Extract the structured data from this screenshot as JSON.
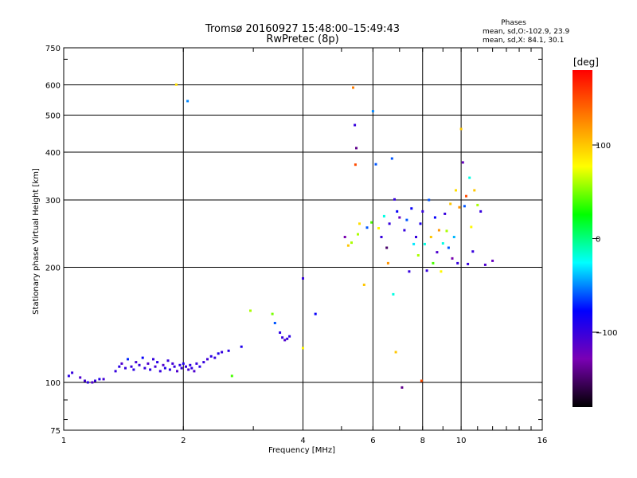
{
  "chart_data": {
    "type": "scatter",
    "title": "Tromsø 20160927 15:48:00–15:49:43",
    "subtitle": "RwPretec (8p)",
    "xlabel": "Frequency [MHz]",
    "ylabel": "Stationary phase Virtual Height [km]",
    "x_scale": "log",
    "y_scale": "log",
    "xlim": [
      1,
      16
    ],
    "ylim": [
      75,
      750
    ],
    "x_ticks": [
      1,
      2,
      4,
      6,
      8,
      10,
      16
    ],
    "x_tick_labels": [
      "1",
      "2",
      "4",
      "6",
      "8",
      "10",
      "16"
    ],
    "y_ticks": [
      75,
      100,
      200,
      300,
      400,
      500,
      600,
      750
    ],
    "y_tick_labels": [
      "75",
      "100",
      "200",
      "300",
      "400",
      "500",
      "600",
      "750"
    ],
    "grid": true,
    "legend": {
      "title": "Phases",
      "lines": [
        "mean, sd,O:-102.9, 23.9",
        "mean, sd,X:  84.1, 30.1"
      ]
    },
    "colorbar": {
      "label": "[deg]",
      "range": [
        -180,
        180
      ],
      "ticks": [
        100,
        0,
        -100
      ],
      "tick_labels": [
        "100",
        "0",
        "−100"
      ],
      "colormap": [
        "#000000",
        "#7a00b4",
        "#0000ff",
        "#00ffff",
        "#00ff00",
        "#ffff00",
        "#ff8000",
        "#ff0000"
      ]
    },
    "series": [
      {
        "name": "E region trace",
        "points": [
          [
            1.03,
            104,
            -95
          ],
          [
            1.05,
            106,
            -100
          ],
          [
            1.1,
            103,
            -110
          ],
          [
            1.13,
            101,
            -105
          ],
          [
            1.15,
            100,
            -95
          ],
          [
            1.18,
            100,
            -110
          ],
          [
            1.2,
            101,
            -100
          ],
          [
            1.23,
            102,
            -90
          ],
          [
            1.26,
            102,
            -105
          ],
          [
            1.35,
            107,
            -100
          ],
          [
            1.38,
            110,
            -95
          ],
          [
            1.4,
            112,
            -110
          ],
          [
            1.43,
            109,
            -100
          ],
          [
            1.45,
            115,
            -70
          ],
          [
            1.48,
            110,
            -100
          ],
          [
            1.5,
            108,
            -95
          ],
          [
            1.52,
            113,
            -105
          ],
          [
            1.55,
            111,
            -100
          ],
          [
            1.58,
            116,
            -80
          ],
          [
            1.6,
            109,
            -100
          ],
          [
            1.63,
            112,
            -110
          ],
          [
            1.65,
            108,
            -95
          ],
          [
            1.68,
            115,
            -100
          ],
          [
            1.7,
            110,
            -105
          ],
          [
            1.72,
            113,
            -95
          ],
          [
            1.75,
            107,
            -100
          ],
          [
            1.78,
            111,
            -110
          ],
          [
            1.8,
            109,
            -90
          ],
          [
            1.83,
            114,
            -100
          ],
          [
            1.85,
            108,
            -95
          ],
          [
            1.88,
            112,
            -105
          ],
          [
            1.9,
            110,
            -100
          ],
          [
            1.93,
            107,
            -110
          ],
          [
            1.96,
            111,
            -95
          ],
          [
            1.98,
            109,
            -100
          ],
          [
            2.0,
            112,
            -90
          ],
          [
            2.03,
            110,
            -100
          ],
          [
            2.06,
            108,
            -105
          ],
          [
            2.08,
            111,
            -95
          ],
          [
            2.1,
            109,
            -100
          ],
          [
            2.13,
            107,
            -110
          ],
          [
            2.16,
            112,
            -100
          ],
          [
            2.2,
            110,
            -95
          ],
          [
            2.25,
            113,
            -100
          ],
          [
            2.3,
            115,
            -105
          ],
          [
            2.35,
            117,
            -95
          ],
          [
            2.4,
            116,
            -100
          ],
          [
            2.45,
            119,
            -90
          ],
          [
            2.5,
            120,
            -100
          ],
          [
            2.6,
            121,
            -95
          ],
          [
            2.65,
            104,
            40
          ],
          [
            2.8,
            124,
            -90
          ],
          [
            2.95,
            154,
            60
          ],
          [
            3.35,
            151,
            50
          ],
          [
            3.4,
            143,
            -60
          ],
          [
            3.5,
            135,
            -95
          ],
          [
            3.55,
            131,
            -100
          ],
          [
            3.6,
            129,
            -110
          ],
          [
            3.65,
            130,
            -100
          ],
          [
            3.7,
            132,
            -95
          ],
          [
            4.0,
            123,
            80
          ],
          [
            4.3,
            151,
            -80
          ]
        ]
      },
      {
        "name": "F region trace",
        "points": [
          [
            1.92,
            601,
            90
          ],
          [
            2.05,
            544,
            -50
          ],
          [
            4.0,
            187,
            -100
          ],
          [
            5.1,
            240,
            -130
          ],
          [
            5.2,
            228,
            100
          ],
          [
            5.3,
            232,
            60
          ],
          [
            5.35,
            590,
            130
          ],
          [
            5.4,
            471,
            -100
          ],
          [
            5.42,
            371,
            150
          ],
          [
            5.45,
            410,
            -140
          ],
          [
            5.5,
            244,
            60
          ],
          [
            5.55,
            260,
            90
          ],
          [
            5.7,
            180,
            100
          ],
          [
            5.8,
            254,
            -60
          ],
          [
            5.95,
            262,
            40
          ],
          [
            6.0,
            512,
            -50
          ],
          [
            6.1,
            372,
            -60
          ],
          [
            6.2,
            253,
            80
          ],
          [
            6.3,
            240,
            -100
          ],
          [
            6.4,
            272,
            -20
          ],
          [
            6.5,
            225,
            -150
          ],
          [
            6.55,
            205,
            120
          ],
          [
            6.6,
            260,
            -100
          ],
          [
            6.7,
            385,
            -60
          ],
          [
            6.75,
            170,
            -20
          ],
          [
            6.8,
            301,
            -100
          ],
          [
            6.85,
            120,
            100
          ],
          [
            6.9,
            280,
            -80
          ],
          [
            7.0,
            270,
            -120
          ],
          [
            7.1,
            97,
            -140
          ],
          [
            7.2,
            250,
            -100
          ],
          [
            7.3,
            266,
            -60
          ],
          [
            7.4,
            195,
            -100
          ],
          [
            7.5,
            285,
            -80
          ],
          [
            7.6,
            230,
            -30
          ],
          [
            7.7,
            240,
            -100
          ],
          [
            7.8,
            215,
            60
          ],
          [
            7.9,
            260,
            -90
          ],
          [
            7.95,
            101,
            150
          ],
          [
            8.0,
            280,
            -100
          ],
          [
            8.1,
            230,
            -20
          ],
          [
            8.2,
            196,
            -100
          ],
          [
            8.3,
            300,
            -60
          ],
          [
            8.4,
            240,
            100
          ],
          [
            8.5,
            205,
            40
          ],
          [
            8.6,
            270,
            -80
          ],
          [
            8.7,
            219,
            -110
          ],
          [
            8.8,
            250,
            120
          ],
          [
            8.9,
            195,
            80
          ],
          [
            9.0,
            231,
            -20
          ],
          [
            9.1,
            276,
            -100
          ],
          [
            9.2,
            249,
            60
          ],
          [
            9.3,
            225,
            -60
          ],
          [
            9.4,
            293,
            100
          ],
          [
            9.5,
            211,
            -130
          ],
          [
            9.6,
            240,
            -40
          ],
          [
            9.7,
            318,
            90
          ],
          [
            9.8,
            205,
            -100
          ],
          [
            9.9,
            287,
            120
          ],
          [
            10.0,
            460,
            100
          ],
          [
            10.1,
            376,
            -120
          ],
          [
            10.2,
            289,
            -60
          ],
          [
            10.3,
            307,
            150
          ],
          [
            10.4,
            204,
            -100
          ],
          [
            10.5,
            343,
            -20
          ],
          [
            10.6,
            255,
            80
          ],
          [
            10.7,
            220,
            -100
          ],
          [
            10.8,
            318,
            100
          ],
          [
            11.0,
            291,
            60
          ],
          [
            11.2,
            280,
            -100
          ],
          [
            11.5,
            203,
            -110
          ],
          [
            12.0,
            208,
            -120
          ]
        ]
      }
    ]
  }
}
